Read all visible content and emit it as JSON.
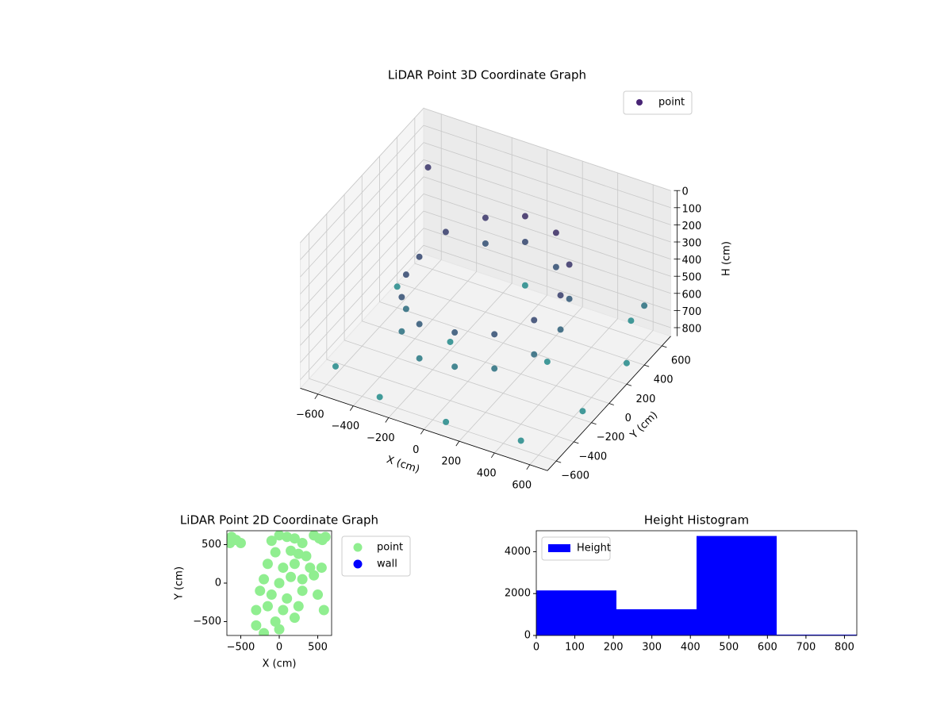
{
  "chart_data": [
    {
      "type": "scatter3d",
      "title": "LiDAR Point 3D Coordinate Graph",
      "xlabel": "X (cm)",
      "ylabel": "Y (cm)",
      "zlabel": "H (cm)",
      "series": [
        {
          "name": "point",
          "color": "#482475",
          "x": [
            -350,
            -350,
            -200,
            -200,
            0,
            0,
            200,
            200,
            350,
            350,
            400,
            400,
            350,
            350,
            200,
            200,
            0,
            0,
            -200,
            -200,
            -350,
            -400,
            -400,
            -400,
            -600,
            -300,
            100,
            500,
            650,
            650,
            500,
            -100,
            -650,
            300,
            -200,
            600,
            -650
          ],
          "y": [
            -250,
            -250,
            -350,
            -350,
            -350,
            -350,
            -300,
            -300,
            -150,
            -150,
            50,
            50,
            250,
            250,
            400,
            400,
            450,
            450,
            400,
            400,
            250,
            50,
            -100,
            -100,
            -500,
            -600,
            -650,
            -600,
            -200,
            300,
            650,
            650,
            300,
            100,
            0,
            600,
            650
          ],
          "z": [
            450,
            650,
            500,
            700,
            480,
            680,
            450,
            650,
            400,
            600,
            350,
            550,
            300,
            500,
            250,
            450,
            250,
            400,
            300,
            450,
            350,
            400,
            420,
            620,
            800,
            820,
            800,
            800,
            800,
            800,
            800,
            800,
            800,
            800,
            800,
            650,
            300
          ]
        }
      ],
      "cmap": [
        "#440154",
        "#21918c"
      ],
      "xlim": [
        -700,
        700
      ],
      "ylim": [
        -700,
        700
      ],
      "zlim": [
        0,
        850
      ],
      "z_inverted": true,
      "xticks": [
        {
          "value": -600,
          "label": "−600"
        },
        {
          "value": -400,
          "label": "−400"
        },
        {
          "value": -200,
          "label": "−200"
        },
        0,
        200,
        400,
        600
      ],
      "yticks": [
        {
          "value": -600,
          "label": "−600"
        },
        {
          "value": -400,
          "label": "−400"
        },
        {
          "value": -200,
          "label": "−200"
        },
        0,
        200,
        400,
        600
      ],
      "zticks": [
        0,
        100,
        200,
        300,
        400,
        500,
        600,
        700,
        800
      ],
      "grid": true,
      "legend": "upper right"
    },
    {
      "type": "scatter",
      "title": "LiDAR Point 2D Coordinate Graph",
      "xlabel": "X (cm)",
      "ylabel": "Y (cm)",
      "series": [
        {
          "name": "point",
          "color": "#90ee90",
          "x": [
            -620,
            -560,
            -500,
            -640,
            450,
            520,
            600,
            560,
            -100,
            0,
            100,
            200,
            300,
            -50,
            150,
            250,
            350,
            -150,
            50,
            200,
            400,
            -200,
            0,
            150,
            300,
            450,
            -250,
            -100,
            100,
            300,
            500,
            -300,
            -150,
            50,
            250,
            -300,
            -200,
            0,
            550,
            580,
            -50,
            200
          ],
          "y": [
            600,
            560,
            520,
            520,
            620,
            580,
            600,
            560,
            550,
            620,
            600,
            580,
            520,
            400,
            420,
            380,
            350,
            250,
            200,
            250,
            200,
            50,
            0,
            80,
            50,
            100,
            -100,
            -150,
            -200,
            -100,
            -150,
            -350,
            -300,
            -350,
            -300,
            -550,
            -650,
            -600,
            200,
            -350,
            -500,
            -450
          ]
        },
        {
          "name": "wall",
          "color": "#0000ff",
          "x": [],
          "y": []
        }
      ],
      "xlim": [
        -680,
        680
      ],
      "ylim": [
        -680,
        680
      ],
      "xticks": [
        {
          "value": -500,
          "label": "−500"
        },
        0,
        500
      ],
      "yticks": [
        {
          "value": -500,
          "label": "−500"
        },
        0,
        500
      ],
      "legend": "outside right"
    },
    {
      "type": "histogram",
      "title": "Height Histogram",
      "series": [
        {
          "name": "Height",
          "color": "#0000ff",
          "values": [
            2150,
            1250,
            4750,
            40
          ]
        }
      ],
      "bins": [
        0,
        208,
        416,
        624,
        832
      ],
      "xlim": [
        0,
        832
      ],
      "ylim": [
        0,
        5000
      ],
      "xticks": [
        0,
        100,
        200,
        300,
        400,
        500,
        600,
        700,
        800
      ],
      "yticks": [
        0,
        2000,
        4000
      ],
      "legend": "upper left"
    }
  ]
}
